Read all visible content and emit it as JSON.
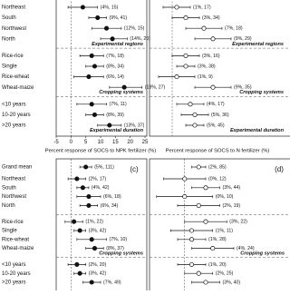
{
  "panels": [
    {
      "x_label": "Percent response of SOCS to NPK fertilizer (%)",
      "xlim": [
        -5,
        25
      ],
      "xticks": [
        -5,
        0,
        5,
        10,
        15,
        20,
        25
      ],
      "marker": "filled",
      "groups": [
        {
          "title": "Experimental regions",
          "rows": [
            {
              "name": "Northeast",
              "value": 4,
              "lo": -1,
              "hi": 9,
              "value_label": "(4%, 15)"
            },
            {
              "name": "South",
              "value": 9,
              "lo": 6,
              "hi": 12,
              "value_label": "(9%, 41)"
            },
            {
              "name": "Northwest",
              "value": 12,
              "lo": 7,
              "hi": 17,
              "value_label": "(12%, 15)"
            },
            {
              "name": "North",
              "value": 14,
              "lo": 10,
              "hi": 19,
              "value_label": "(14%, 20)"
            }
          ]
        },
        {
          "title": "Cropping systems",
          "rows": [
            {
              "name": "Rice-rice",
              "value": 7,
              "lo": 3,
              "hi": 11,
              "value_label": "(7%, 18)"
            },
            {
              "name": "Single",
              "value": 8,
              "lo": 5,
              "hi": 11,
              "value_label": "(8%, 34)"
            },
            {
              "name": "Rice-wheat",
              "value": 6,
              "lo": 1,
              "hi": 11,
              "value_label": "(6%, 14)"
            },
            {
              "name": "Wheat-maize",
              "value": 18,
              "lo": 13,
              "hi": 24,
              "value_label": "(18%, 27)"
            }
          ]
        },
        {
          "title": "Experimental duration",
          "rows": [
            {
              "name": "<10 years",
              "value": 7,
              "lo": 2,
              "hi": 12,
              "value_label": "(7%, 11)"
            },
            {
              "name": "10-20 years",
              "value": 8,
              "lo": 5,
              "hi": 11,
              "value_label": "(8%, 39)"
            },
            {
              "name": ">20 years",
              "value": 13,
              "lo": 9,
              "hi": 17,
              "value_label": "(13%, 37)"
            }
          ]
        }
      ]
    },
    {
      "x_label": "Percent response of SOCS to N fertilizer (%)",
      "xlim": [
        -5,
        25
      ],
      "marker": "open",
      "groups": [
        {
          "title": "Experimental regions",
          "rows": [
            {
              "value": 1,
              "lo": -2,
              "hi": 4,
              "value_label": "(1%, 17)"
            },
            {
              "value": 3,
              "lo": 0,
              "hi": 6,
              "value_label": "(3%, 34)"
            },
            {
              "value": 7,
              "lo": 3,
              "hi": 11,
              "value_label": "(7%, 18)"
            },
            {
              "value": 9,
              "lo": 5,
              "hi": 13,
              "value_label": "(9%, 29)"
            }
          ]
        },
        {
          "title": "Cropping systems",
          "rows": [
            {
              "value": 3,
              "lo": 0,
              "hi": 6,
              "value_label": "(3%, 16)"
            },
            {
              "value": 3,
              "lo": 1,
              "hi": 5,
              "value_label": "(3%, 38)"
            },
            {
              "value": 1,
              "lo": -3,
              "hi": 5,
              "value_label": "(1%, 9)"
            },
            {
              "value": 9,
              "lo": 5,
              "hi": 13,
              "value_label": "(9%, 35)"
            }
          ]
        },
        {
          "title": "Experimental duration",
          "rows": [
            {
              "value": 4,
              "lo": 1,
              "hi": 7,
              "value_label": "(4%, 17)"
            },
            {
              "value": 5,
              "lo": 2,
              "hi": 8,
              "value_label": "(5%, 36)"
            },
            {
              "value": 5,
              "lo": 3,
              "hi": 7,
              "value_label": "(5%, 45)"
            }
          ]
        }
      ]
    },
    {
      "label": "(c)",
      "xlim": [
        -5,
        25
      ],
      "marker": "filled",
      "grand_mean": {
        "name": "Grand mean",
        "value": 5,
        "lo": 3,
        "hi": 7,
        "value_label": "(5%, 111)"
      },
      "groups": [
        {
          "rows": [
            {
              "name": "Northeast",
              "value": 2,
              "lo": -1,
              "hi": 5,
              "value_label": "(2%, 17)"
            },
            {
              "name": "South",
              "value": 4,
              "lo": 2,
              "hi": 6,
              "value_label": "(4%, 42)"
            },
            {
              "name": "Northwest",
              "value": 6,
              "lo": 2,
              "hi": 10,
              "value_label": "(6%, 18)"
            },
            {
              "name": "North",
              "value": 6,
              "lo": 3,
              "hi": 9,
              "value_label": "(6%, 34)"
            }
          ]
        },
        {
          "title": "Cropping systems",
          "rows": [
            {
              "name": "Rice-rice",
              "value": 1,
              "lo": -2,
              "hi": 4,
              "value_label": "(1%, 22)"
            },
            {
              "name": "Single",
              "value": 3,
              "lo": 1,
              "hi": 5,
              "value_label": "(3%, 42)"
            },
            {
              "name": "Rice-wheat",
              "value": 7,
              "lo": 2,
              "hi": 12,
              "value_label": "(7%, 10)"
            },
            {
              "name": "Wheat-maize",
              "value": 8,
              "lo": 5,
              "hi": 11,
              "value_label": "(8%, 37)"
            }
          ]
        },
        {
          "rows": [
            {
              "name": "<10 years",
              "value": 2,
              "lo": -1,
              "hi": 5,
              "value_label": "(2%, 20)"
            },
            {
              "name": "10-20 years",
              "value": 3,
              "lo": 1,
              "hi": 5,
              "value_label": "(3%, 42)"
            },
            {
              "name": ">20 years",
              "value": 7,
              "lo": 4,
              "hi": 10,
              "value_label": "(7%, 49)"
            }
          ]
        }
      ]
    },
    {
      "label": "(d)",
      "xlim": [
        -5,
        15
      ],
      "marker": "open",
      "grand_mean": {
        "value": 2,
        "lo": 1,
        "hi": 3,
        "value_label": "(2%, 85)"
      },
      "groups": [
        {
          "rows": [
            {
              "value": 0,
              "lo": -3,
              "hi": 3,
              "value_label": "(0%, 12)"
            },
            {
              "value": 3,
              "lo": 1,
              "hi": 5,
              "value_label": "(3%, 44)"
            },
            {
              "value": 0,
              "lo": -4,
              "hi": 4,
              "value_label": "(0%, 10)"
            },
            {
              "value": 2,
              "lo": -1,
              "hi": 5,
              "value_label": "(2%, 19)"
            }
          ]
        },
        {
          "title": "Cropping systems",
          "rows": [
            {
              "value": 3,
              "lo": 0,
              "hi": 6,
              "value_label": "(3%, 22)"
            },
            {
              "value": 1,
              "lo": -2,
              "hi": 4,
              "value_label": "(1%, 11)"
            },
            {
              "value": 1,
              "lo": -1,
              "hi": 3,
              "value_label": "(1%, 28)"
            },
            {
              "value": 4,
              "lo": 1,
              "hi": 7,
              "value_label": "(4%, 24)"
            }
          ]
        },
        {
          "rows": [
            {
              "value": 1,
              "lo": -1,
              "hi": 3,
              "value_label": "(1%, 20)"
            },
            {
              "value": 2,
              "lo": 0,
              "hi": 4,
              "value_label": "(2%, 25)"
            },
            {
              "value": 3,
              "lo": 1,
              "hi": 5,
              "value_label": "(3%, 40)"
            }
          ]
        }
      ]
    }
  ]
}
